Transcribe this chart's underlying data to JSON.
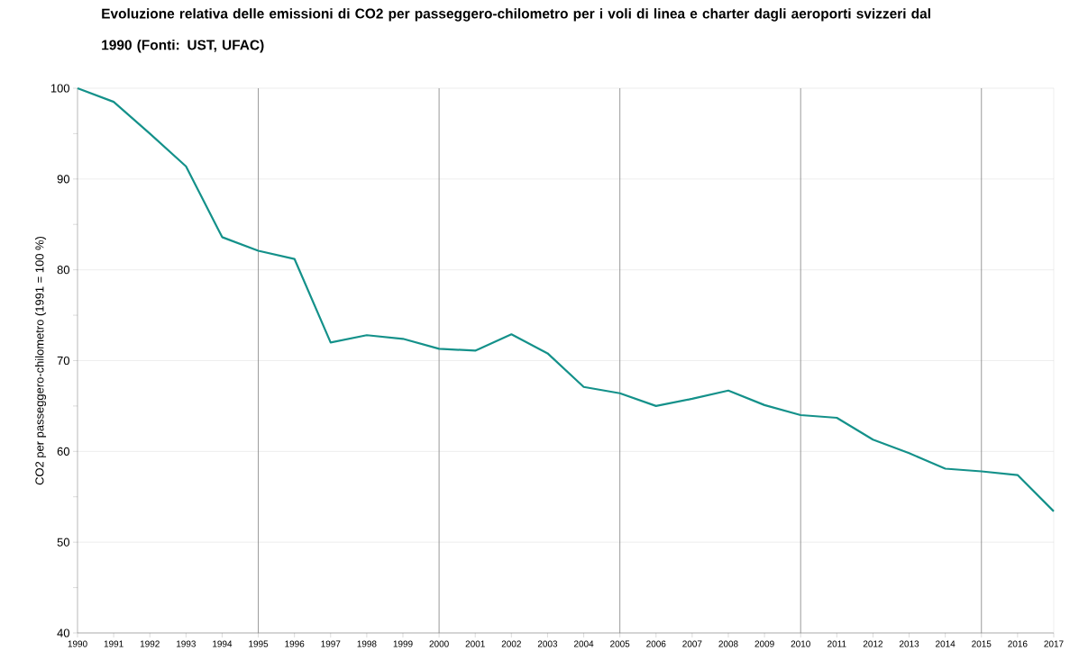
{
  "chart_data": {
    "type": "line",
    "title": "Evoluzione relativa delle emissioni di CO2 per passeggero-chilometro per i voli di linea e charter dagli aeroporti svizzeri dal 1990 (Fonti: UST, UFAC)",
    "ylabel": "CO2 per passeggero-chilometro (1991 = 100 %)",
    "x": [
      1990,
      1991,
      1992,
      1993,
      1994,
      1995,
      1996,
      1997,
      1998,
      1999,
      2000,
      2001,
      2002,
      2003,
      2004,
      2005,
      2006,
      2007,
      2008,
      2009,
      2010,
      2011,
      2012,
      2013,
      2014,
      2015,
      2016,
      2017
    ],
    "series": [
      {
        "color": "#14918a",
        "values": [
          100,
          98.5,
          95.0,
          91.4,
          83.6,
          82.1,
          81.2,
          72.0,
          72.8,
          72.4,
          71.3,
          71.1,
          72.9,
          70.8,
          67.1,
          66.4,
          65.0,
          65.8,
          66.7,
          65.1,
          64.0,
          63.7,
          61.3,
          59.8,
          58.1,
          57.8,
          57.4,
          53.4
        ]
      }
    ],
    "xlim": [
      1990,
      2017
    ],
    "ylim": [
      40,
      100
    ],
    "xticks": [
      1990,
      1991,
      1992,
      1993,
      1994,
      1995,
      1996,
      1997,
      1998,
      1999,
      2000,
      2001,
      2002,
      2003,
      2004,
      2005,
      2006,
      2007,
      2008,
      2009,
      2010,
      2011,
      2012,
      2013,
      2014,
      2015,
      2016,
      2017
    ],
    "yticks": [
      40,
      50,
      60,
      70,
      80,
      90,
      100
    ],
    "grid": "y",
    "marker": "none",
    "line_style": "solid",
    "ref_lines": [
      {
        "axis": "x",
        "value": 1995,
        "color": "#808080"
      },
      {
        "axis": "x",
        "value": 2000,
        "color": "#808080"
      },
      {
        "axis": "x",
        "value": 2005,
        "color": "#808080"
      },
      {
        "axis": "x",
        "value": 2010,
        "color": "#808080"
      },
      {
        "axis": "x",
        "value": 2015,
        "color": "#808080"
      }
    ]
  }
}
